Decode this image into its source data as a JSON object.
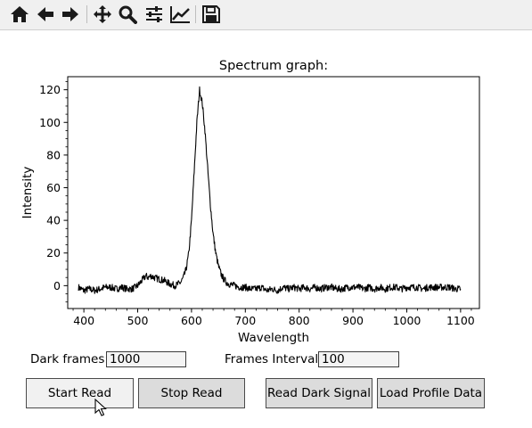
{
  "toolbar": {
    "buttons": [
      {
        "name": "home-icon"
      },
      {
        "name": "back-arrow-icon"
      },
      {
        "name": "forward-arrow-icon"
      },
      {
        "name": "pan-icon"
      },
      {
        "name": "zoom-icon"
      },
      {
        "name": "configure-subplots-icon"
      },
      {
        "name": "edit-axes-icon"
      },
      {
        "name": "save-icon"
      }
    ]
  },
  "controls": {
    "dark_frames_label": "Dark frames:",
    "dark_frames_value": "1000",
    "frames_interval_label": "Frames Interval:",
    "frames_interval_value": "100",
    "start_read": "Start Read",
    "stop_read": "Stop Read",
    "read_dark_signal": "Read Dark Signal",
    "load_profile_data": "Load Profile Data"
  },
  "chart_data": {
    "type": "line",
    "title": "Spectrum graph:",
    "xlabel": "Wavelength",
    "ylabel": "Intensity",
    "xlim": [
      370,
      1135
    ],
    "ylim": [
      -14,
      128
    ],
    "xticks": [
      400,
      500,
      600,
      700,
      800,
      900,
      1000,
      1100
    ],
    "yticks": [
      0,
      20,
      40,
      60,
      80,
      100,
      120
    ],
    "grid": false,
    "series": [
      {
        "color": "#000000",
        "x": [
          390,
          400,
          410,
          420,
          430,
          440,
          450,
          460,
          470,
          480,
          490,
          500,
          505,
          510,
          515,
          520,
          525,
          530,
          540,
          550,
          560,
          570,
          575,
          580,
          585,
          590,
          595,
          600,
          605,
          610,
          615,
          620,
          625,
          630,
          635,
          640,
          645,
          650,
          655,
          660,
          665,
          670,
          680,
          690,
          700,
          710,
          720,
          730,
          740,
          750,
          760,
          770,
          780,
          790,
          800,
          810,
          820,
          830,
          840,
          850,
          860,
          870,
          880,
          890,
          900,
          910,
          920,
          930,
          940,
          950,
          960,
          970,
          980,
          990,
          1000,
          1010,
          1020,
          1030,
          1040,
          1050,
          1060,
          1070,
          1080,
          1090,
          1100
        ],
        "y": [
          -1,
          -3,
          -2,
          -3,
          -2,
          -1,
          -1,
          -2,
          -1,
          -2,
          -2,
          0,
          2,
          4,
          6,
          5,
          6,
          5,
          4,
          3,
          1,
          0,
          1,
          2,
          5,
          10,
          20,
          40,
          70,
          100,
          120,
          112,
          95,
          72,
          50,
          32,
          20,
          12,
          7,
          4,
          2,
          1,
          0,
          -1,
          -1,
          -2,
          -2,
          -1,
          -3,
          -2,
          -3,
          -1,
          -2,
          -1,
          -2,
          -1,
          -2,
          -1,
          -2,
          -1,
          -1,
          -2,
          -2,
          -1,
          -1,
          -1,
          -2,
          -1,
          -2,
          -1,
          -2,
          -1,
          -1,
          -2,
          -1,
          -1,
          -1,
          -2,
          -1,
          -1,
          -1,
          -1,
          -1,
          -2,
          -2
        ]
      }
    ]
  }
}
